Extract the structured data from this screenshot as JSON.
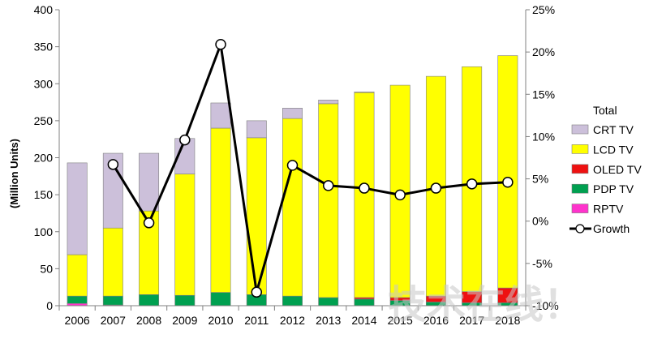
{
  "chart_data": {
    "type": "bar",
    "stacked": true,
    "categories": [
      "2006",
      "2007",
      "2008",
      "2009",
      "2010",
      "2011",
      "2012",
      "2013",
      "2014",
      "2015",
      "2016",
      "2017",
      "2018"
    ],
    "ylabel": "(Million Units)",
    "ylim": [
      0,
      400
    ],
    "yticks": [
      0,
      50,
      100,
      150,
      200,
      250,
      300,
      350,
      400
    ],
    "y2lim": [
      -10,
      25
    ],
    "y2ticks": [
      "-10%",
      "-5%",
      "0%",
      "5%",
      "10%",
      "15%",
      "20%",
      "25%"
    ],
    "grid": false,
    "legend_position": "right",
    "legend_title": "Total",
    "series": [
      {
        "name": "RPTV",
        "color": "#ff33cc",
        "values": [
          3,
          1,
          0,
          0,
          0,
          0,
          0,
          0,
          0,
          0,
          0,
          0,
          0
        ]
      },
      {
        "name": "PDP TV",
        "color": "#00a050",
        "values": [
          10,
          12,
          15,
          14,
          18,
          15,
          13,
          11,
          9,
          7,
          5,
          4,
          4
        ]
      },
      {
        "name": "OLED TV",
        "color": "#ee1111",
        "values": [
          0,
          0,
          0,
          0,
          0,
          0,
          0,
          0,
          2,
          4,
          8,
          15,
          20
        ]
      },
      {
        "name": "LCD TV",
        "color": "#ffff00",
        "values": [
          56,
          92,
          113,
          164,
          222,
          212,
          240,
          262,
          277,
          287,
          297,
          304,
          314
        ]
      },
      {
        "name": "CRT TV",
        "color": "#ccc0da",
        "values": [
          124,
          101,
          78,
          48,
          34,
          23,
          14,
          5,
          1,
          0,
          0,
          0,
          0
        ]
      }
    ],
    "growth": {
      "name": "Growth",
      "axis": "right",
      "unit": "%",
      "values": [
        null,
        6.7,
        -0.2,
        9.6,
        20.9,
        -8.4,
        6.6,
        4.2,
        3.9,
        3.1,
        3.9,
        4.4,
        4.6
      ]
    }
  },
  "legend": {
    "title": "Total",
    "items": [
      {
        "label": "CRT TV",
        "swatch": "#ccc0da",
        "kind": "box"
      },
      {
        "label": "LCD TV",
        "swatch": "#ffff00",
        "kind": "box"
      },
      {
        "label": "OLED TV",
        "swatch": "#ee1111",
        "kind": "box"
      },
      {
        "label": "PDP TV",
        "swatch": "#00a050",
        "kind": "box"
      },
      {
        "label": "RPTV",
        "swatch": "#ff33cc",
        "kind": "box"
      },
      {
        "label": "Growth",
        "swatch": "#000000",
        "kind": "line"
      }
    ]
  },
  "watermark": "技术在线！"
}
